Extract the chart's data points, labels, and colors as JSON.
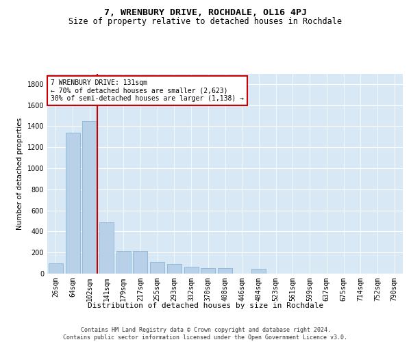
{
  "title": "7, WRENBURY DRIVE, ROCHDALE, OL16 4PJ",
  "subtitle": "Size of property relative to detached houses in Rochdale",
  "xlabel": "Distribution of detached houses by size in Rochdale",
  "ylabel": "Number of detached properties",
  "footer_line1": "Contains HM Land Registry data © Crown copyright and database right 2024.",
  "footer_line2": "Contains public sector information licensed under the Open Government Licence v3.0.",
  "property_line_label": "7 WRENBURY DRIVE: 131sqm",
  "legend_line2": "← 70% of detached houses are smaller (2,623)",
  "legend_line3": "30% of semi-detached houses are larger (1,138) →",
  "bar_color": "#b8d0e8",
  "bar_edge_color": "#7aafd4",
  "vline_color": "#cc0000",
  "bg_color": "#d8e8f4",
  "categories": [
    "26sqm",
    "64sqm",
    "102sqm",
    "141sqm",
    "179sqm",
    "217sqm",
    "255sqm",
    "293sqm",
    "332sqm",
    "370sqm",
    "408sqm",
    "446sqm",
    "484sqm",
    "523sqm",
    "561sqm",
    "599sqm",
    "637sqm",
    "675sqm",
    "714sqm",
    "752sqm",
    "790sqm"
  ],
  "values": [
    100,
    1340,
    1450,
    490,
    215,
    215,
    110,
    90,
    65,
    50,
    50,
    0,
    45,
    0,
    0,
    0,
    0,
    0,
    0,
    0,
    0
  ],
  "vline_pos": 2.45,
  "ylim": [
    0,
    1900
  ],
  "yticks": [
    0,
    200,
    400,
    600,
    800,
    1000,
    1200,
    1400,
    1600,
    1800
  ],
  "title_fontsize": 9.5,
  "subtitle_fontsize": 8.5,
  "xlabel_fontsize": 8,
  "ylabel_fontsize": 7.5,
  "tick_fontsize": 7,
  "footer_fontsize": 6,
  "legend_fontsize": 7
}
